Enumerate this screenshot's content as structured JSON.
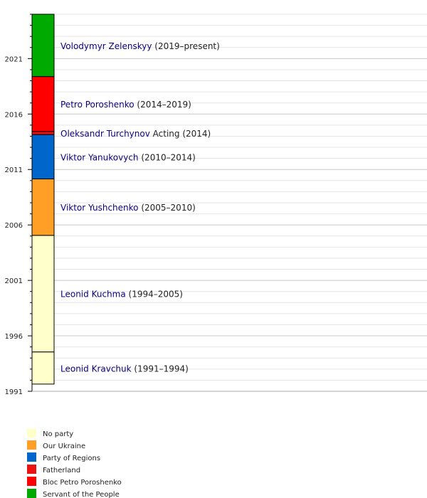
{
  "chart_data": {
    "type": "timeline",
    "ylim": [
      1991,
      2025
    ],
    "yticks": [
      1991,
      1996,
      2001,
      2006,
      2011,
      2016,
      2021
    ],
    "minor_yticks": [
      1992,
      1993,
      1994,
      1995,
      1997,
      1998,
      1999,
      2000,
      2002,
      2003,
      2004,
      2005,
      2007,
      2008,
      2009,
      2010,
      2012,
      2013,
      2014,
      2015,
      2017,
      2018,
      2019,
      2020,
      2022,
      2023,
      2024,
      2025
    ],
    "grid": true,
    "parties": [
      {
        "name": "No party",
        "color": "#ffffcc"
      },
      {
        "name": "Our Ukraine",
        "color": "#ff9f25"
      },
      {
        "name": "Party of Regions",
        "color": "#0066cc"
      },
      {
        "name": "Fatherland",
        "color": "#ee1111"
      },
      {
        "name": "Bloc Petro Poroshenko",
        "color": "#ff0000"
      },
      {
        "name": "Servant of the People",
        "color": "#00aa00"
      }
    ],
    "terms": [
      {
        "name": "Leonid Kravchuk",
        "span": "(1991–1994)",
        "start": 1991.65,
        "end": 1994.55,
        "party": 0
      },
      {
        "name": "Leonid Kuchma",
        "span": "(1994–2005)",
        "start": 1994.55,
        "end": 2005.06,
        "party": 0
      },
      {
        "name": "Viktor Yushchenko",
        "span": "(2005–2010)",
        "start": 2005.06,
        "end": 2010.15,
        "party": 1
      },
      {
        "name": "Viktor Yanukovych",
        "span": "(2010–2014)",
        "start": 2010.15,
        "end": 2014.15,
        "party": 2
      },
      {
        "name": "Oleksandr Turchynov",
        "span": "Acting (2014)",
        "start": 2014.15,
        "end": 2014.43,
        "party": 3
      },
      {
        "name": "Petro Poroshenko",
        "span": "(2014–2019)",
        "start": 2014.43,
        "end": 2019.38,
        "party": 4
      },
      {
        "name": "Volodymyr Zelenskyy",
        "span": "(2019–present)",
        "start": 2019.38,
        "end": 2025,
        "party": 5
      }
    ]
  }
}
